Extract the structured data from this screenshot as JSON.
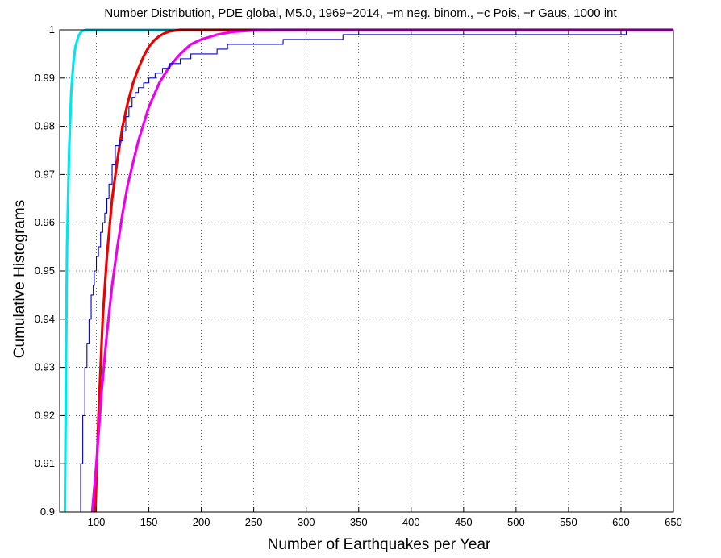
{
  "chart_data": {
    "type": "line",
    "title": "Number Distribution, PDE global, M5.0, 1969−2014, −m neg. binom., −c Pois, −r Gaus, 1000 int",
    "xlabel": "Number of Earthquakes per Year",
    "ylabel": "Cumulative Histograms",
    "xlim": [
      65,
      650
    ],
    "ylim": [
      0.9,
      1.0
    ],
    "grid": true,
    "x_ticks": [
      "100",
      "150",
      "200",
      "250",
      "300",
      "350",
      "400",
      "450",
      "500",
      "550",
      "600",
      "650"
    ],
    "y_ticks": [
      "0.9",
      "0.91",
      "0.92",
      "0.93",
      "0.94",
      "0.95",
      "0.96",
      "0.97",
      "0.98",
      "0.99",
      "1"
    ],
    "series": [
      {
        "color": "#00e5ee",
        "style": "curve",
        "points": [
          [
            70,
            0.9
          ],
          [
            71,
            0.93
          ],
          [
            72,
            0.955
          ],
          [
            74,
            0.975
          ],
          [
            76,
            0.987
          ],
          [
            78,
            0.993
          ],
          [
            80,
            0.9965
          ],
          [
            83,
            0.9988
          ],
          [
            86,
            0.9997
          ],
          [
            90,
            1.0
          ],
          [
            650,
            1.0
          ]
        ]
      },
      {
        "color": "#ee0000",
        "style": "curve",
        "points": [
          [
            99,
            0.9
          ],
          [
            102,
            0.92
          ],
          [
            106,
            0.94
          ],
          [
            110,
            0.953
          ],
          [
            115,
            0.965
          ],
          [
            120,
            0.973
          ],
          [
            125,
            0.98
          ],
          [
            130,
            0.985
          ],
          [
            135,
            0.989
          ],
          [
            140,
            0.992
          ],
          [
            145,
            0.9945
          ],
          [
            150,
            0.9965
          ],
          [
            155,
            0.9978
          ],
          [
            160,
            0.9987
          ],
          [
            165,
            0.9993
          ],
          [
            170,
            0.9997
          ],
          [
            180,
            1.0
          ],
          [
            650,
            1.0
          ]
        ]
      },
      {
        "color": "#ee00ee",
        "style": "curve",
        "points": [
          [
            96,
            0.9
          ],
          [
            100,
            0.91
          ],
          [
            105,
            0.925
          ],
          [
            110,
            0.937
          ],
          [
            115,
            0.947
          ],
          [
            120,
            0.955
          ],
          [
            125,
            0.962
          ],
          [
            130,
            0.968
          ],
          [
            140,
            0.977
          ],
          [
            150,
            0.984
          ],
          [
            160,
            0.989
          ],
          [
            170,
            0.9925
          ],
          [
            180,
            0.995
          ],
          [
            190,
            0.997
          ],
          [
            200,
            0.998
          ],
          [
            215,
            0.999
          ],
          [
            230,
            0.9996
          ],
          [
            250,
            0.9999
          ],
          [
            270,
            1.0
          ],
          [
            650,
            1.0
          ]
        ]
      },
      {
        "color": "#0000cc",
        "style": "step",
        "points": [
          [
            85,
            0.9
          ],
          [
            85,
            0.91
          ],
          [
            87,
            0.91
          ],
          [
            87,
            0.92
          ],
          [
            89,
            0.92
          ],
          [
            89,
            0.93
          ],
          [
            91,
            0.93
          ],
          [
            91,
            0.935
          ],
          [
            93,
            0.935
          ],
          [
            93,
            0.94
          ],
          [
            95,
            0.94
          ],
          [
            95,
            0.945
          ],
          [
            97,
            0.945
          ],
          [
            97,
            0.947
          ],
          [
            98,
            0.947
          ],
          [
            98,
            0.95
          ],
          [
            100,
            0.95
          ],
          [
            100,
            0.953
          ],
          [
            102,
            0.953
          ],
          [
            102,
            0.955
          ],
          [
            104,
            0.955
          ],
          [
            104,
            0.958
          ],
          [
            106,
            0.958
          ],
          [
            106,
            0.96
          ],
          [
            108,
            0.96
          ],
          [
            108,
            0.962
          ],
          [
            110,
            0.962
          ],
          [
            110,
            0.965
          ],
          [
            112,
            0.965
          ],
          [
            112,
            0.968
          ],
          [
            115,
            0.968
          ],
          [
            115,
            0.972
          ],
          [
            118,
            0.972
          ],
          [
            118,
            0.976
          ],
          [
            122,
            0.976
          ],
          [
            122,
            0.977
          ],
          [
            125,
            0.977
          ],
          [
            125,
            0.979
          ],
          [
            128,
            0.979
          ],
          [
            128,
            0.982
          ],
          [
            131,
            0.982
          ],
          [
            131,
            0.984
          ],
          [
            134,
            0.984
          ],
          [
            134,
            0.986
          ],
          [
            137,
            0.986
          ],
          [
            137,
            0.987
          ],
          [
            140,
            0.987
          ],
          [
            140,
            0.988
          ],
          [
            145,
            0.988
          ],
          [
            145,
            0.989
          ],
          [
            150,
            0.989
          ],
          [
            150,
            0.99
          ],
          [
            156,
            0.99
          ],
          [
            156,
            0.991
          ],
          [
            163,
            0.991
          ],
          [
            163,
            0.992
          ],
          [
            170,
            0.992
          ],
          [
            170,
            0.993
          ],
          [
            180,
            0.993
          ],
          [
            180,
            0.994
          ],
          [
            190,
            0.994
          ],
          [
            190,
            0.995
          ],
          [
            215,
            0.995
          ],
          [
            215,
            0.996
          ],
          [
            225,
            0.996
          ],
          [
            225,
            0.997
          ],
          [
            278,
            0.997
          ],
          [
            278,
            0.998
          ],
          [
            335,
            0.998
          ],
          [
            335,
            0.999
          ],
          [
            605,
            0.999
          ],
          [
            605,
            1.0
          ],
          [
            650,
            1.0
          ]
        ]
      }
    ]
  }
}
